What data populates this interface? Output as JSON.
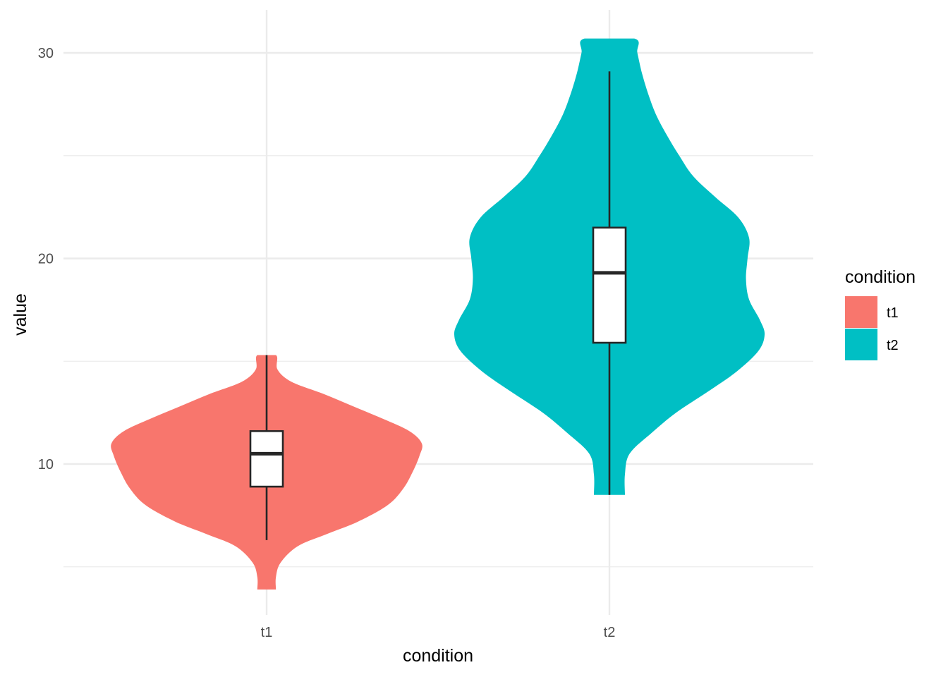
{
  "chart_data": {
    "type": "violin",
    "xlabel": "condition",
    "ylabel": "value",
    "categories": [
      "t1",
      "t2"
    ],
    "ylim": [
      3.9,
      32.0
    ],
    "y_ticks": [
      10,
      20,
      30
    ],
    "y_minor_ticks": [
      5,
      15,
      25
    ],
    "grid": true,
    "legend": {
      "title": "condition",
      "position": "right",
      "entries": [
        {
          "label": "t1",
          "color": "#F8766D"
        },
        {
          "label": "t2",
          "color": "#00BFC4"
        }
      ]
    },
    "series": [
      {
        "name": "t1",
        "color": "#F8766D",
        "violin": {
          "range": [
            3.9,
            15.3
          ],
          "density": [
            [
              3.9,
              0.06
            ],
            [
              4.5,
              0.06
            ],
            [
              5.2,
              0.09
            ],
            [
              6.0,
              0.2
            ],
            [
              6.6,
              0.39
            ],
            [
              7.2,
              0.59
            ],
            [
              8.0,
              0.78
            ],
            [
              8.8,
              0.88
            ],
            [
              9.6,
              0.94
            ],
            [
              10.4,
              0.985
            ],
            [
              11.0,
              1.0
            ],
            [
              11.6,
              0.92
            ],
            [
              12.2,
              0.75
            ],
            [
              12.8,
              0.56
            ],
            [
              13.4,
              0.37
            ],
            [
              14.0,
              0.16
            ],
            [
              14.6,
              0.07
            ],
            [
              15.3,
              0.06
            ]
          ]
        },
        "box": {
          "whisker_low": 6.3,
          "q1": 8.9,
          "median": 10.5,
          "q3": 11.6,
          "whisker_high": 15.3
        }
      },
      {
        "name": "t2",
        "color": "#00BFC4",
        "violin": {
          "range": [
            8.5,
            30.7
          ],
          "density": [
            [
              8.5,
              0.1
            ],
            [
              9.5,
              0.1
            ],
            [
              10.5,
              0.13
            ],
            [
              11.5,
              0.27
            ],
            [
              12.5,
              0.43
            ],
            [
              13.5,
              0.63
            ],
            [
              14.5,
              0.82
            ],
            [
              15.5,
              0.96
            ],
            [
              16.3,
              1.0
            ],
            [
              17.0,
              0.97
            ],
            [
              18.0,
              0.9
            ],
            [
              19.0,
              0.88
            ],
            [
              20.0,
              0.89
            ],
            [
              21.0,
              0.9
            ],
            [
              22.0,
              0.83
            ],
            [
              23.0,
              0.68
            ],
            [
              24.0,
              0.54
            ],
            [
              25.0,
              0.45
            ],
            [
              26.0,
              0.37
            ],
            [
              27.0,
              0.3
            ],
            [
              28.0,
              0.25
            ],
            [
              29.0,
              0.21
            ],
            [
              30.0,
              0.18
            ],
            [
              30.7,
              0.16
            ]
          ]
        },
        "box": {
          "whisker_low": 8.5,
          "q1": 15.9,
          "median": 19.3,
          "q3": 21.5,
          "whisker_high": 29.1
        }
      }
    ]
  }
}
